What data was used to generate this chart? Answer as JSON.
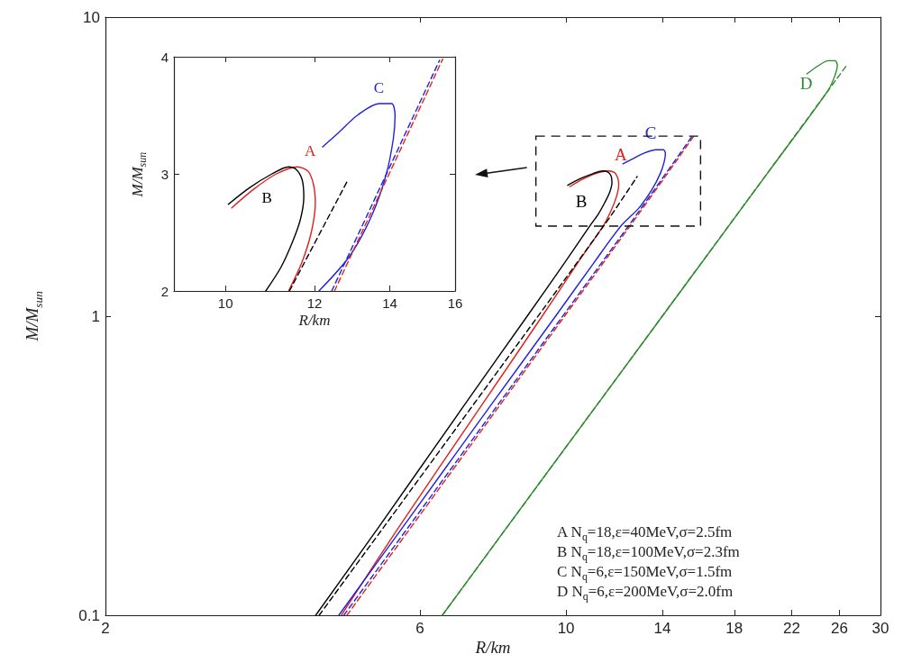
{
  "chart_data": [
    {
      "type": "line",
      "xlabel": "R/km",
      "ylabel": "M/M$_{sun}$",
      "log": "xy",
      "marker": "none",
      "xlim": [
        2,
        30
      ],
      "xticks": [
        2,
        6,
        10,
        14,
        18,
        22,
        26,
        30
      ],
      "ylim": [
        0.1,
        10
      ],
      "yticks": [
        0.1,
        1,
        10
      ],
      "annotations": [
        "A N$_{q}$=18,ε=40MeV,σ=2.5fm",
        "B N$_{q}$=18,ε=100MeV,σ=2.3fm",
        "C N$_{q}$=6,ε=150MeV,σ=1.5fm",
        "D N$_{q}$=6,ε=200MeV,σ=2.0fm"
      ],
      "series": [
        {
          "name": "A",
          "color": "#e0201b",
          "line_style": "solid",
          "x": [
            4.56,
            5.6,
            7.43,
            9.2,
            10.4,
            11.38,
            11.7,
            11.92,
            12.02,
            11.98,
            11.85,
            11.59,
            11.1,
            10.6,
            10.13
          ],
          "values": [
            0.1,
            0.2,
            0.5,
            1.0,
            1.5,
            2.0,
            2.25,
            2.5,
            2.75,
            2.9,
            3.02,
            3.06,
            3.0,
            2.87,
            2.71
          ]
        },
        {
          "name": "B",
          "color": "#000000",
          "line_style": "solid",
          "x": [
            4.17,
            5.22,
            6.99,
            8.73,
            9.93,
            10.86,
            11.2,
            11.45,
            11.65,
            11.74,
            11.7,
            11.55,
            11.38,
            11.0,
            10.5,
            10.06
          ],
          "values": [
            0.1,
            0.2,
            0.5,
            1.0,
            1.5,
            2.0,
            2.2,
            2.4,
            2.6,
            2.8,
            2.95,
            3.04,
            3.06,
            3.0,
            2.88,
            2.74
          ]
        },
        {
          "name": "C",
          "color": "#2020e0",
          "line_style": "solid",
          "x": [
            4.52,
            5.68,
            7.67,
            9.64,
            11.0,
            12.11,
            12.9,
            13.5,
            13.9,
            14.1,
            14.15,
            14.05,
            13.7,
            13.1,
            12.6,
            12.2
          ],
          "values": [
            0.1,
            0.2,
            0.5,
            1.0,
            1.5,
            2.0,
            2.3,
            2.65,
            3.0,
            3.3,
            3.5,
            3.6,
            3.6,
            3.5,
            3.35,
            3.23
          ]
        },
        {
          "name": "D",
          "color": "#2e8b2e",
          "line_style": "solid",
          "x": [
            6.49,
            9.36,
            14.0,
            20.2,
            25.0,
            25.6,
            25.8,
            25.6,
            25.0,
            24.2,
            23.2
          ],
          "values": [
            0.1,
            0.3,
            1.0,
            3.0,
            5.7,
            6.4,
            6.9,
            7.15,
            7.15,
            6.9,
            6.46
          ]
        },
        {
          "color": "#000000",
          "line_style": "dashed",
          "x": [
            4.22,
            11.4,
            12.82
          ],
          "values": [
            0.1,
            2.0,
            2.93
          ]
        },
        {
          "color": "#2020e0",
          "line_style": "dashed",
          "x": [
            4.6,
            12.43,
            15.5
          ],
          "values": [
            0.1,
            2.0,
            3.97
          ]
        },
        {
          "color": "#e0201b",
          "line_style": "dashed",
          "x": [
            4.65,
            12.5,
            15.6
          ],
          "values": [
            0.1,
            2.0,
            3.98
          ]
        },
        {
          "color": "#2e8b2e",
          "line_style": "dashed",
          "x": [
            6.49,
            26.7
          ],
          "values": [
            0.1,
            6.93
          ]
        }
      ]
    },
    {
      "type": "line",
      "xlabel": "R/km",
      "ylabel": "M/M$_{sun}$",
      "log": "x",
      "marker": "none",
      "xlim": [
        9,
        16
      ],
      "xticks": [
        10,
        12,
        14,
        16
      ],
      "ylim": [
        2,
        4
      ],
      "yticks": [
        2,
        3,
        4
      ],
      "series": [
        {
          "name": "A",
          "color": "#e0201b",
          "line_style": "solid",
          "x": [
            11.38,
            11.7,
            11.92,
            12.02,
            11.98,
            11.85,
            11.59,
            11.1,
            10.6,
            10.13
          ],
          "values": [
            2.0,
            2.25,
            2.5,
            2.75,
            2.9,
            3.02,
            3.06,
            3.0,
            2.87,
            2.71
          ]
        },
        {
          "name": "B",
          "color": "#000000",
          "line_style": "solid",
          "x": [
            10.86,
            11.2,
            11.45,
            11.65,
            11.74,
            11.7,
            11.55,
            11.38,
            11.0,
            10.5,
            10.06
          ],
          "values": [
            2.0,
            2.2,
            2.4,
            2.6,
            2.8,
            2.95,
            3.04,
            3.06,
            3.0,
            2.88,
            2.74
          ]
        },
        {
          "name": "C",
          "color": "#2020e0",
          "line_style": "solid",
          "x": [
            12.11,
            12.9,
            13.5,
            13.9,
            14.1,
            14.15,
            14.05,
            13.7,
            13.1,
            12.6,
            12.2
          ],
          "values": [
            2.0,
            2.3,
            2.65,
            3.0,
            3.3,
            3.5,
            3.6,
            3.6,
            3.5,
            3.35,
            3.23
          ]
        },
        {
          "color": "#000000",
          "line_style": "dashed",
          "x": [
            11.4,
            12.82
          ],
          "values": [
            2.0,
            2.93
          ]
        },
        {
          "color": "#2020e0",
          "line_style": "dashed",
          "x": [
            12.43,
            15.5
          ],
          "values": [
            2.0,
            3.97
          ]
        },
        {
          "color": "#e0201b",
          "line_style": "dashed",
          "x": [
            12.5,
            15.6
          ],
          "values": [
            2.0,
            3.98
          ]
        }
      ]
    }
  ]
}
